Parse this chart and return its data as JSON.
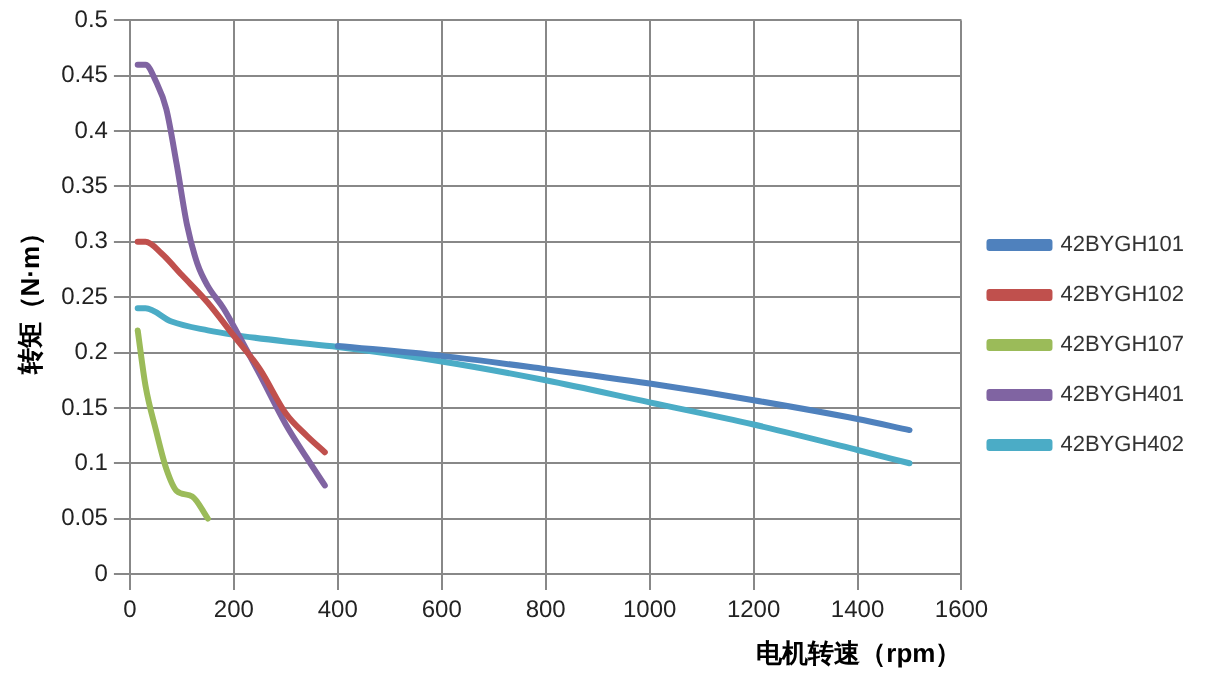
{
  "chart_data": {
    "type": "line",
    "xlabel": "电机转速（rpm）",
    "ylabel": "转矩（N·m）",
    "xlim": [
      0,
      1600
    ],
    "xticks": [
      0,
      200,
      400,
      600,
      800,
      1000,
      1200,
      1400,
      1600
    ],
    "ylim": [
      0,
      0.5
    ],
    "yticks": [
      0,
      0.05,
      0.1,
      0.15,
      0.2,
      0.25,
      0.3,
      0.35,
      0.4,
      0.45,
      0.5
    ],
    "grid": true,
    "legend": "right",
    "marker": "none",
    "line_style": "solid",
    "series": [
      {
        "name": "42BYGH101",
        "color": "#4f81bd",
        "x": [
          400,
          600,
          800,
          1000,
          1200,
          1400,
          1500
        ],
        "values": [
          0.206,
          0.197,
          0.185,
          0.172,
          0.157,
          0.14,
          0.13
        ]
      },
      {
        "name": "42BYGH102",
        "color": "#c0504d",
        "x": [
          15,
          30,
          60,
          100,
          150,
          200,
          250,
          300,
          340,
          375
        ],
        "values": [
          0.3,
          0.3,
          0.29,
          0.27,
          0.245,
          0.215,
          0.185,
          0.145,
          0.125,
          0.11
        ]
      },
      {
        "name": "42BYGH107",
        "color": "#9bbb59",
        "x": [
          15,
          30,
          50,
          70,
          90,
          120,
          150
        ],
        "values": [
          0.22,
          0.17,
          0.13,
          0.095,
          0.075,
          0.07,
          0.05
        ]
      },
      {
        "name": "42BYGH401",
        "color": "#8064a2",
        "x": [
          15,
          30,
          50,
          70,
          90,
          110,
          130,
          150,
          180,
          210,
          250,
          300,
          340,
          375
        ],
        "values": [
          0.46,
          0.46,
          0.445,
          0.42,
          0.37,
          0.315,
          0.28,
          0.26,
          0.24,
          0.215,
          0.18,
          0.135,
          0.105,
          0.08
        ]
      },
      {
        "name": "42BYGH402",
        "color": "#4bacc6",
        "x": [
          15,
          30,
          80,
          150,
          200,
          300,
          400,
          600,
          800,
          1000,
          1200,
          1400,
          1500
        ],
        "values": [
          0.24,
          0.24,
          0.228,
          0.22,
          0.216,
          0.21,
          0.205,
          0.192,
          0.175,
          0.155,
          0.135,
          0.112,
          0.1
        ]
      }
    ]
  }
}
